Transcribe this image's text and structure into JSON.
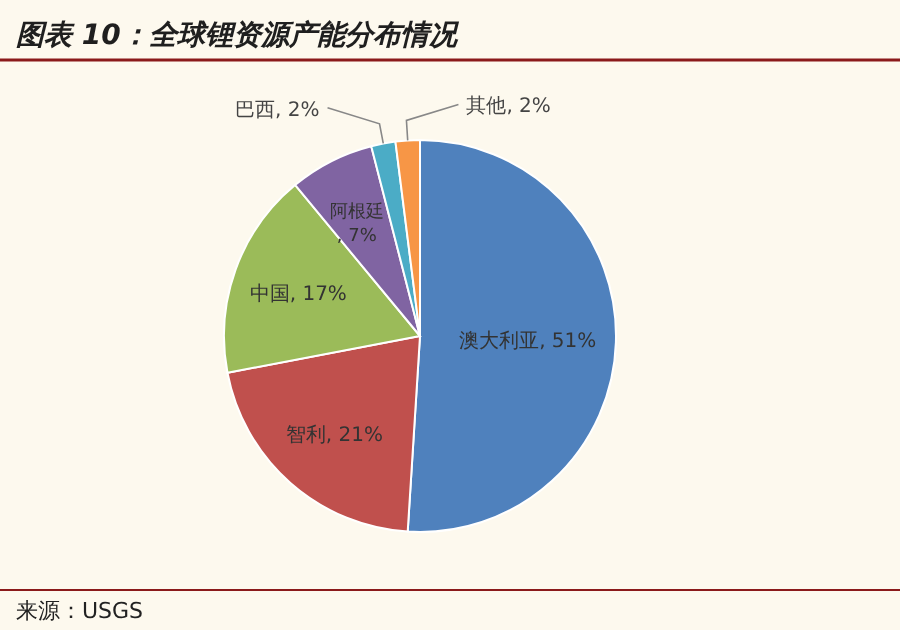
{
  "chart_data": {
    "type": "pie",
    "title": "图表 10：全球锂资源产能分布情况",
    "categories": [
      "澳大利亚",
      "智利",
      "中国",
      "阿根廷",
      "巴西",
      "其他"
    ],
    "values": [
      51,
      21,
      17,
      7,
      2,
      2
    ],
    "colors": [
      "#4f81bd",
      "#c0504d",
      "#9bbb59",
      "#8064a2",
      "#4bacc6",
      "#f79646"
    ],
    "value_labels": [
      ", 51%",
      ", 21%",
      ", 17%",
      ", 7%",
      ", 2%",
      ", 2%"
    ],
    "annotations": [
      "来源：USGS"
    ]
  }
}
